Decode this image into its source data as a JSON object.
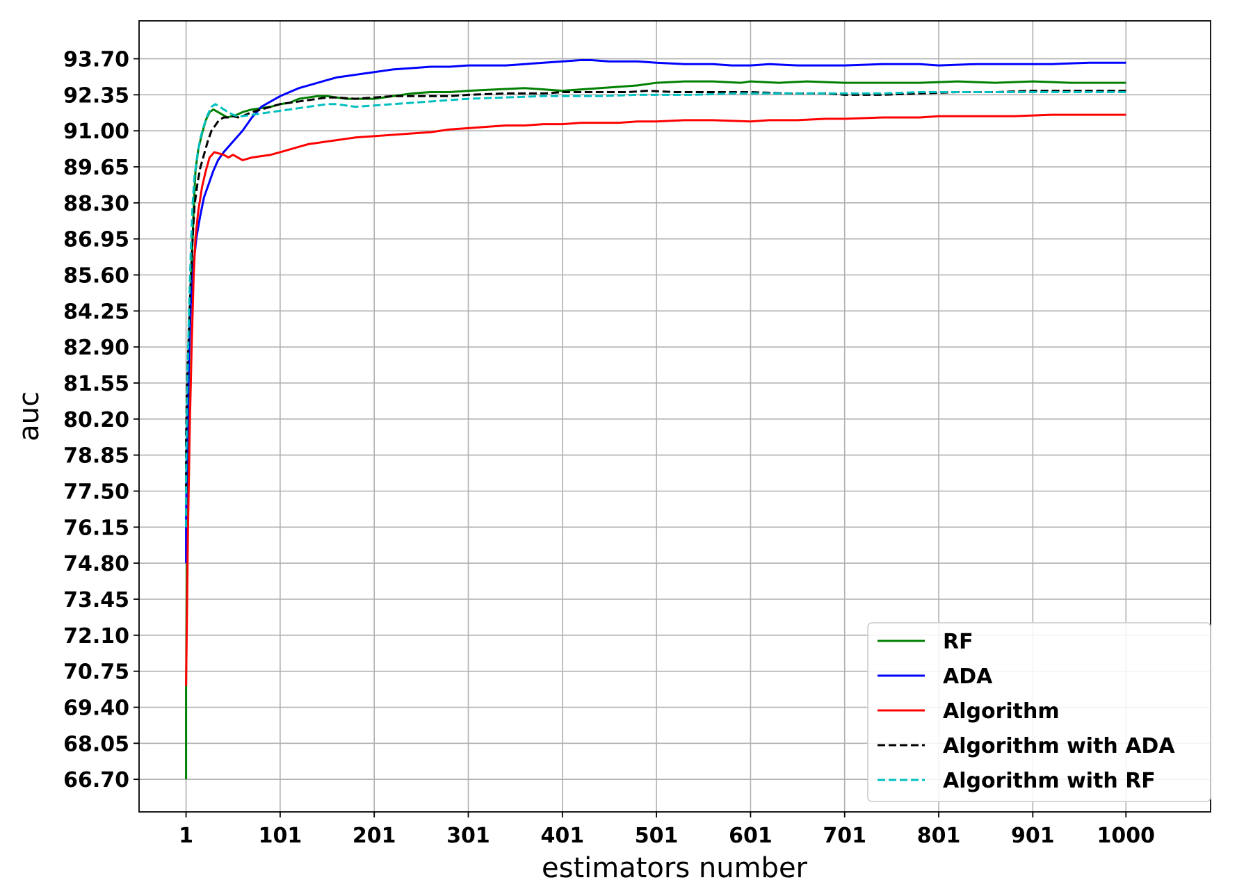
{
  "chart_data": {
    "type": "line",
    "title": "",
    "xlabel": "estimators number",
    "ylabel": "auc",
    "xlim": [
      -48.95,
      1089.95
    ],
    "ylim": [
      65.48,
      95.12
    ],
    "grid": true,
    "legend_position": "lower-right",
    "x_ticks": [
      1,
      101,
      201,
      301,
      401,
      501,
      601,
      701,
      801,
      901,
      1000
    ],
    "y_ticks": [
      66.7,
      68.05,
      69.4,
      70.75,
      72.1,
      73.45,
      74.8,
      76.15,
      77.5,
      78.85,
      80.2,
      81.55,
      82.9,
      84.25,
      85.6,
      86.95,
      88.3,
      89.65,
      91.0,
      92.35,
      93.7
    ],
    "x_tick_labels": [
      "1",
      "101",
      "201",
      "301",
      "401",
      "501",
      "601",
      "701",
      "801",
      "901",
      "1000"
    ],
    "y_tick_labels": [
      "66.70",
      "68.05",
      "69.40",
      "70.75",
      "72.10",
      "73.45",
      "74.80",
      "76.15",
      "77.50",
      "78.85",
      "80.20",
      "81.55",
      "82.90",
      "84.25",
      "85.60",
      "86.95",
      "88.30",
      "89.65",
      "91.00",
      "92.35",
      "93.70"
    ],
    "series": [
      {
        "name": "RF",
        "color": "#008000",
        "dash": false,
        "points": [
          [
            1,
            66.7
          ],
          [
            1,
            70.0
          ],
          [
            2,
            76
          ],
          [
            3,
            80
          ],
          [
            5,
            84
          ],
          [
            7,
            86
          ],
          [
            9,
            88
          ],
          [
            11,
            89.5
          ],
          [
            14,
            90.3
          ],
          [
            18,
            90.9
          ],
          [
            22,
            91.4
          ],
          [
            26,
            91.7
          ],
          [
            30,
            91.8
          ],
          [
            35,
            91.7
          ],
          [
            40,
            91.6
          ],
          [
            45,
            91.5
          ],
          [
            50,
            91.55
          ],
          [
            55,
            91.6
          ],
          [
            61,
            91.7
          ],
          [
            71,
            91.8
          ],
          [
            81,
            91.85
          ],
          [
            91,
            91.9
          ],
          [
            101,
            92.0
          ],
          [
            111,
            92.05
          ],
          [
            121,
            92.2
          ],
          [
            131,
            92.25
          ],
          [
            141,
            92.3
          ],
          [
            151,
            92.3
          ],
          [
            161,
            92.25
          ],
          [
            171,
            92.2
          ],
          [
            181,
            92.2
          ],
          [
            201,
            92.2
          ],
          [
            221,
            92.3
          ],
          [
            241,
            92.4
          ],
          [
            261,
            92.45
          ],
          [
            281,
            92.45
          ],
          [
            301,
            92.5
          ],
          [
            331,
            92.55
          ],
          [
            361,
            92.6
          ],
          [
            381,
            92.55
          ],
          [
            401,
            92.5
          ],
          [
            421,
            92.55
          ],
          [
            441,
            92.6
          ],
          [
            461,
            92.65
          ],
          [
            481,
            92.7
          ],
          [
            501,
            92.8
          ],
          [
            531,
            92.85
          ],
          [
            561,
            92.85
          ],
          [
            591,
            92.8
          ],
          [
            601,
            92.85
          ],
          [
            631,
            92.8
          ],
          [
            661,
            92.85
          ],
          [
            701,
            92.8
          ],
          [
            741,
            92.8
          ],
          [
            781,
            92.8
          ],
          [
            821,
            92.85
          ],
          [
            861,
            92.8
          ],
          [
            901,
            92.85
          ],
          [
            941,
            92.8
          ],
          [
            1000,
            92.8
          ]
        ]
      },
      {
        "name": "ADA",
        "color": "#0000ff",
        "dash": false,
        "points": [
          [
            1,
            74.8
          ],
          [
            1,
            76.5
          ],
          [
            2,
            79
          ],
          [
            4,
            82.5
          ],
          [
            6,
            84.5
          ],
          [
            9,
            86
          ],
          [
            12,
            87
          ],
          [
            16,
            87.8
          ],
          [
            20,
            88.5
          ],
          [
            25,
            89.0
          ],
          [
            30,
            89.5
          ],
          [
            35,
            89.9
          ],
          [
            41,
            90.2
          ],
          [
            51,
            90.6
          ],
          [
            61,
            91.0
          ],
          [
            71,
            91.5
          ],
          [
            81,
            91.9
          ],
          [
            91,
            92.1
          ],
          [
            101,
            92.3
          ],
          [
            111,
            92.45
          ],
          [
            121,
            92.6
          ],
          [
            131,
            92.7
          ],
          [
            141,
            92.8
          ],
          [
            151,
            92.9
          ],
          [
            161,
            93.0
          ],
          [
            171,
            93.05
          ],
          [
            181,
            93.1
          ],
          [
            191,
            93.15
          ],
          [
            201,
            93.2
          ],
          [
            211,
            93.25
          ],
          [
            221,
            93.3
          ],
          [
            241,
            93.35
          ],
          [
            261,
            93.4
          ],
          [
            281,
            93.4
          ],
          [
            301,
            93.45
          ],
          [
            321,
            93.45
          ],
          [
            341,
            93.45
          ],
          [
            361,
            93.5
          ],
          [
            381,
            93.55
          ],
          [
            401,
            93.6
          ],
          [
            421,
            93.65
          ],
          [
            431,
            93.65
          ],
          [
            451,
            93.6
          ],
          [
            481,
            93.6
          ],
          [
            501,
            93.55
          ],
          [
            531,
            93.5
          ],
          [
            561,
            93.5
          ],
          [
            581,
            93.45
          ],
          [
            601,
            93.45
          ],
          [
            621,
            93.5
          ],
          [
            651,
            93.45
          ],
          [
            681,
            93.45
          ],
          [
            701,
            93.45
          ],
          [
            741,
            93.5
          ],
          [
            781,
            93.5
          ],
          [
            801,
            93.45
          ],
          [
            841,
            93.5
          ],
          [
            881,
            93.5
          ],
          [
            921,
            93.5
          ],
          [
            961,
            93.55
          ],
          [
            1000,
            93.55
          ]
        ]
      },
      {
        "name": "Algorithm",
        "color": "#ff0000",
        "dash": false,
        "points": [
          [
            1,
            70.2
          ],
          [
            2,
            73
          ],
          [
            3,
            76
          ],
          [
            5,
            80
          ],
          [
            7,
            83
          ],
          [
            9,
            85.5
          ],
          [
            11,
            87
          ],
          [
            14,
            88
          ],
          [
            18,
            88.9
          ],
          [
            22,
            89.5
          ],
          [
            26,
            90.0
          ],
          [
            31,
            90.2
          ],
          [
            36,
            90.15
          ],
          [
            41,
            90.1
          ],
          [
            46,
            90.0
          ],
          [
            51,
            90.1
          ],
          [
            56,
            90.0
          ],
          [
            61,
            89.9
          ],
          [
            71,
            90.0
          ],
          [
            81,
            90.05
          ],
          [
            91,
            90.1
          ],
          [
            101,
            90.2
          ],
          [
            111,
            90.3
          ],
          [
            121,
            90.4
          ],
          [
            131,
            90.5
          ],
          [
            141,
            90.55
          ],
          [
            151,
            90.6
          ],
          [
            161,
            90.65
          ],
          [
            171,
            90.7
          ],
          [
            181,
            90.75
          ],
          [
            201,
            90.8
          ],
          [
            221,
            90.85
          ],
          [
            241,
            90.9
          ],
          [
            261,
            90.95
          ],
          [
            281,
            91.05
          ],
          [
            301,
            91.1
          ],
          [
            321,
            91.15
          ],
          [
            341,
            91.2
          ],
          [
            361,
            91.2
          ],
          [
            381,
            91.25
          ],
          [
            401,
            91.25
          ],
          [
            421,
            91.3
          ],
          [
            441,
            91.3
          ],
          [
            461,
            91.3
          ],
          [
            481,
            91.35
          ],
          [
            501,
            91.35
          ],
          [
            531,
            91.4
          ],
          [
            561,
            91.4
          ],
          [
            601,
            91.35
          ],
          [
            621,
            91.4
          ],
          [
            651,
            91.4
          ],
          [
            681,
            91.45
          ],
          [
            701,
            91.45
          ],
          [
            741,
            91.5
          ],
          [
            781,
            91.5
          ],
          [
            801,
            91.55
          ],
          [
            841,
            91.55
          ],
          [
            881,
            91.55
          ],
          [
            921,
            91.6
          ],
          [
            961,
            91.6
          ],
          [
            1000,
            91.6
          ]
        ]
      },
      {
        "name": "Algorithm with ADA",
        "color": "#000000",
        "dash": true,
        "points": [
          [
            1,
            77.5
          ],
          [
            1,
            79.5
          ],
          [
            2,
            81.5
          ],
          [
            4,
            83.5
          ],
          [
            6,
            85.5
          ],
          [
            8,
            87
          ],
          [
            10,
            88.2
          ],
          [
            13,
            89.0
          ],
          [
            16,
            89.6
          ],
          [
            20,
            90.1
          ],
          [
            24,
            90.6
          ],
          [
            28,
            91.0
          ],
          [
            32,
            91.2
          ],
          [
            36,
            91.4
          ],
          [
            41,
            91.5
          ],
          [
            46,
            91.5
          ],
          [
            51,
            91.55
          ],
          [
            56,
            91.5
          ],
          [
            61,
            91.55
          ],
          [
            71,
            91.7
          ],
          [
            81,
            91.8
          ],
          [
            91,
            91.9
          ],
          [
            101,
            92.0
          ],
          [
            111,
            92.05
          ],
          [
            121,
            92.1
          ],
          [
            131,
            92.15
          ],
          [
            141,
            92.2
          ],
          [
            151,
            92.25
          ],
          [
            161,
            92.25
          ],
          [
            181,
            92.2
          ],
          [
            201,
            92.25
          ],
          [
            221,
            92.3
          ],
          [
            241,
            92.3
          ],
          [
            261,
            92.3
          ],
          [
            281,
            92.3
          ],
          [
            301,
            92.35
          ],
          [
            341,
            92.4
          ],
          [
            381,
            92.4
          ],
          [
            401,
            92.45
          ],
          [
            441,
            92.45
          ],
          [
            471,
            92.45
          ],
          [
            491,
            92.5
          ],
          [
            521,
            92.45
          ],
          [
            561,
            92.45
          ],
          [
            601,
            92.45
          ],
          [
            641,
            92.4
          ],
          [
            681,
            92.4
          ],
          [
            701,
            92.35
          ],
          [
            741,
            92.35
          ],
          [
            781,
            92.4
          ],
          [
            821,
            92.45
          ],
          [
            861,
            92.45
          ],
          [
            901,
            92.5
          ],
          [
            941,
            92.5
          ],
          [
            1000,
            92.5
          ]
        ]
      },
      {
        "name": "Algorithm with RF",
        "color": "#00bfbf",
        "dash": true,
        "points": [
          [
            1,
            76.15
          ],
          [
            1,
            78
          ],
          [
            2,
            81
          ],
          [
            4,
            84
          ],
          [
            6,
            86.5
          ],
          [
            8,
            88.3
          ],
          [
            10,
            89.3
          ],
          [
            13,
            90.1
          ],
          [
            16,
            90.7
          ],
          [
            20,
            91.2
          ],
          [
            24,
            91.6
          ],
          [
            28,
            91.9
          ],
          [
            32,
            92.0
          ],
          [
            37,
            91.9
          ],
          [
            41,
            91.8
          ],
          [
            46,
            91.7
          ],
          [
            51,
            91.6
          ],
          [
            56,
            91.55
          ],
          [
            61,
            91.55
          ],
          [
            71,
            91.6
          ],
          [
            81,
            91.65
          ],
          [
            91,
            91.7
          ],
          [
            101,
            91.75
          ],
          [
            111,
            91.8
          ],
          [
            121,
            91.85
          ],
          [
            131,
            91.9
          ],
          [
            141,
            91.95
          ],
          [
            151,
            92.0
          ],
          [
            161,
            92.0
          ],
          [
            171,
            91.95
          ],
          [
            181,
            91.9
          ],
          [
            201,
            91.95
          ],
          [
            221,
            92.0
          ],
          [
            241,
            92.05
          ],
          [
            261,
            92.1
          ],
          [
            281,
            92.15
          ],
          [
            301,
            92.2
          ],
          [
            341,
            92.25
          ],
          [
            381,
            92.3
          ],
          [
            401,
            92.3
          ],
          [
            441,
            92.3
          ],
          [
            481,
            92.35
          ],
          [
            501,
            92.35
          ],
          [
            541,
            92.35
          ],
          [
            581,
            92.4
          ],
          [
            601,
            92.4
          ],
          [
            641,
            92.4
          ],
          [
            681,
            92.4
          ],
          [
            701,
            92.4
          ],
          [
            741,
            92.4
          ],
          [
            781,
            92.45
          ],
          [
            821,
            92.45
          ],
          [
            861,
            92.45
          ],
          [
            901,
            92.45
          ],
          [
            941,
            92.45
          ],
          [
            1000,
            92.45
          ]
        ]
      }
    ]
  }
}
